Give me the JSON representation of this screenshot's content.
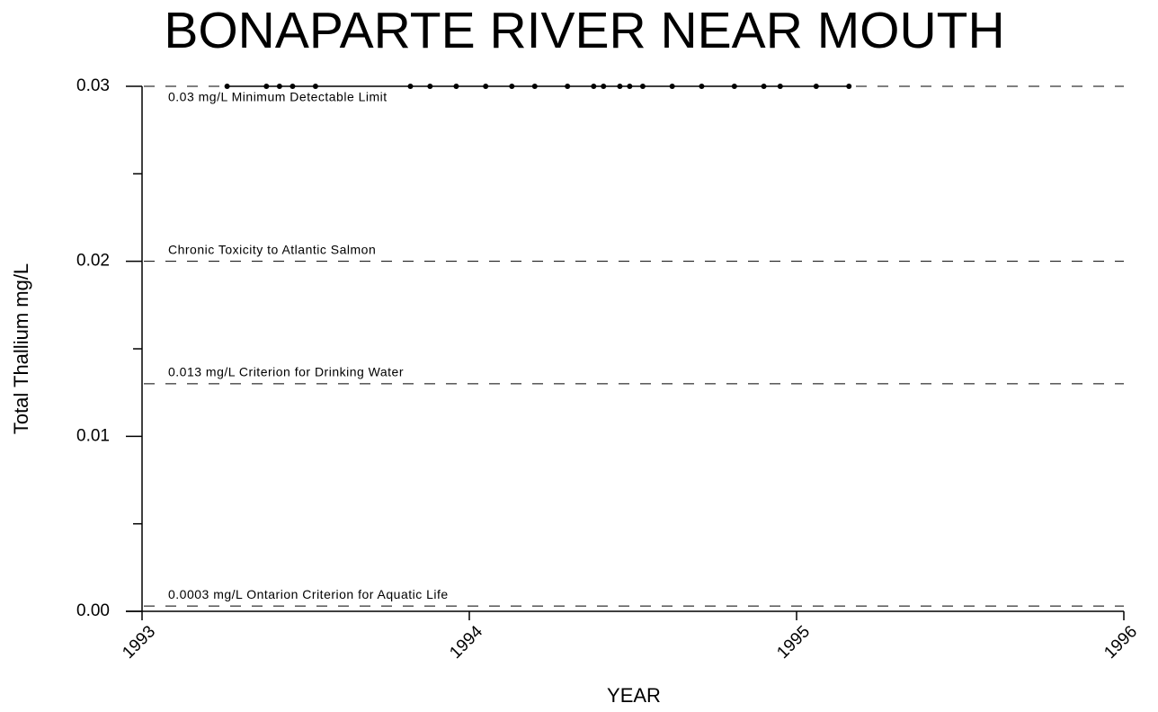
{
  "chart_data": {
    "type": "line",
    "title": "BONAPARTE RIVER NEAR MOUTH",
    "xlabel": "YEAR",
    "ylabel": "Total Thallium mg/L",
    "x": [
      1993.26,
      1993.38,
      1993.42,
      1993.46,
      1993.53,
      1993.82,
      1993.88,
      1993.96,
      1994.05,
      1994.13,
      1994.2,
      1994.3,
      1994.38,
      1994.41,
      1994.46,
      1994.49,
      1994.53,
      1994.62,
      1994.71,
      1994.81,
      1994.9,
      1994.95,
      1995.06,
      1995.16
    ],
    "values": [
      0.03,
      0.03,
      0.03,
      0.03,
      0.03,
      0.03,
      0.03,
      0.03,
      0.03,
      0.03,
      0.03,
      0.03,
      0.03,
      0.03,
      0.03,
      0.03,
      0.03,
      0.03,
      0.03,
      0.03,
      0.03,
      0.03,
      0.03,
      0.03
    ],
    "color": "#000000",
    "xlim": [
      1993,
      1996
    ],
    "xticks": [
      1993,
      1994,
      1995,
      1996
    ],
    "ylim": [
      0,
      0.03
    ],
    "yticks": [
      {
        "value": 0,
        "label": "0.00"
      },
      0.01,
      0.02,
      0.03
    ],
    "yminorticks": [
      0.005,
      0.015,
      0.025
    ],
    "reference_lines": [
      {
        "value": 0.03,
        "label": "0.03 mg/L Minimum Detectable Limit"
      },
      {
        "value": 0.02,
        "label": "Chronic Toxicity to Atlantic Salmon"
      },
      {
        "value": 0.013,
        "label": "0.013 mg/L Criterion for Drinking Water"
      },
      {
        "value": 0.0003,
        "label": "0.0003 mg/L Ontarion Criterion for Aquatic Life"
      }
    ]
  }
}
